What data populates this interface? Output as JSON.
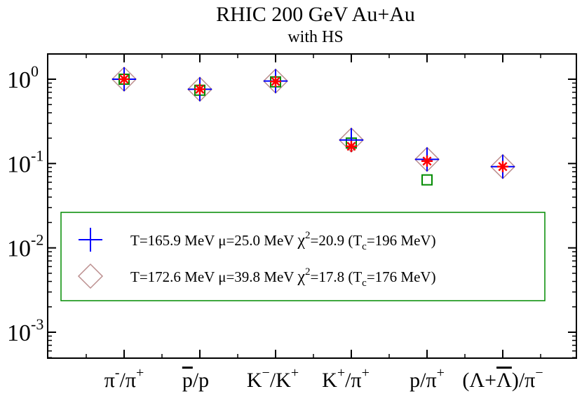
{
  "chart_data": {
    "type": "scatter",
    "title": "RHIC 200 GeV Au+Au",
    "subtitle": "with HS",
    "yscale": "log",
    "ylim": [
      0.0005,
      2
    ],
    "grid": false,
    "legend_placement": "center",
    "y_ticks": [
      {
        "base": "10",
        "exp": "0",
        "value": 1
      },
      {
        "base": "10",
        "exp": "-1",
        "value": 0.1
      },
      {
        "base": "10",
        "exp": "-2",
        "value": 0.01
      },
      {
        "base": "10",
        "exp": "-3",
        "value": 0.001
      }
    ],
    "categories": [
      {
        "base": "π",
        "sup1": "-",
        "mid": "/π",
        "sup2": "+"
      },
      {
        "base": "p",
        "overline": true,
        "sup1": "",
        "mid": "/p",
        "sup2": ""
      },
      {
        "base": "K",
        "sup1": "−",
        "mid": "/K",
        "sup2": "+"
      },
      {
        "base": "K",
        "sup1": "+",
        "mid": "/π",
        "sup2": "+"
      },
      {
        "base": "p",
        "sup1": "",
        "mid": "/π",
        "sup2": "+"
      },
      {
        "base": "(Λ+",
        "overlineChar": "Λ",
        "sup1": "",
        "mid": ")/π",
        "sup2": "−"
      }
    ],
    "series": [
      {
        "name": "T=165.9 MeV  μ=25.0 MeV χ²=20.9  (Tc=196 MeV)",
        "marker": "plus",
        "color": "#0000ff",
        "values": [
          1.0,
          0.76,
          0.95,
          0.19,
          0.112,
          0.092
        ]
      },
      {
        "name": "T=172.6 MeV  μ=39.8 MeV χ²=17.8  (Tc=176 MeV)",
        "marker": "diamond",
        "color": "#bc8f8f",
        "values": [
          1.0,
          0.76,
          0.95,
          0.19,
          0.112,
          0.092
        ]
      },
      {
        "marker": "square",
        "color": "#008b00",
        "values": [
          1.0,
          0.74,
          0.93,
          0.175,
          0.064,
          null
        ]
      },
      {
        "marker": "star",
        "color": "#ff0000",
        "values": [
          1.0,
          0.76,
          0.94,
          0.16,
          0.107,
          0.092
        ]
      }
    ],
    "legend": [
      {
        "text": "T=165.9 MeV  μ=25.0 MeV ",
        "chi": "χ",
        "chi_sup": "2",
        "rest": "=20.9  (T",
        "sub": "c",
        "tail": "=196 MeV)"
      },
      {
        "text": "T=172.6 MeV  μ=39.8 MeV ",
        "chi": "χ",
        "chi_sup": "2",
        "rest": "=17.8  (T",
        "sub": "c",
        "tail": "=176 MeV)"
      }
    ]
  }
}
